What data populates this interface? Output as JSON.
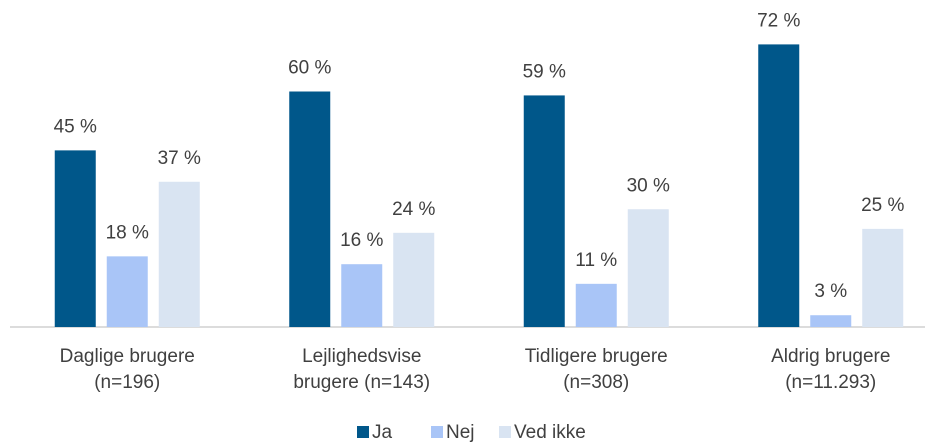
{
  "chart_data": {
    "type": "bar",
    "categories": [
      "Daglige brugere\n(n=196)",
      "Lejlighedsvise\nbrugere (n=143)",
      "Tidligere brugere\n(n=308)",
      "Aldrig brugere\n(n=11.293)"
    ],
    "series": [
      {
        "name": "Ja",
        "color": "#00578a",
        "values": [
          45,
          60,
          59,
          72
        ],
        "value_labels": [
          "45 %",
          "60 %",
          "59 %",
          "72 %"
        ]
      },
      {
        "name": "Nej",
        "color": "#a9c5f7",
        "values": [
          18,
          16,
          11,
          3
        ],
        "value_labels": [
          "18 %",
          "16 %",
          "11 %",
          "3 %"
        ]
      },
      {
        "name": "Ved ikke",
        "color": "#d9e4f2",
        "values": [
          37,
          24,
          30,
          25
        ],
        "value_labels": [
          "37 %",
          "24 %",
          "30 %",
          "25 %"
        ]
      }
    ],
    "ylim": [
      0,
      80
    ],
    "legend": "bottom"
  }
}
